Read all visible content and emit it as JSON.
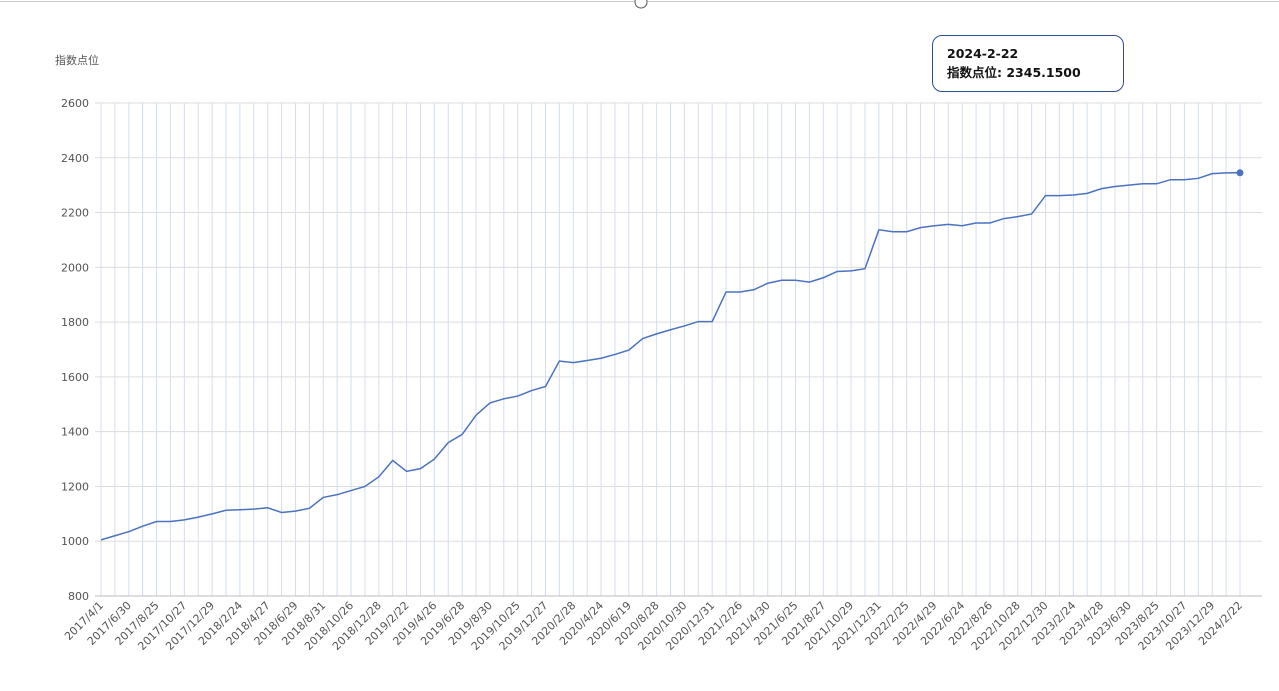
{
  "chart_data": {
    "type": "line",
    "y_label": "指数点位",
    "categories": [
      "2017/4/1",
      null,
      "2017/6/30",
      null,
      "2017/8/25",
      null,
      "2017/10/27",
      null,
      "2017/12/29",
      null,
      "2018/2/24",
      null,
      "2018/4/27",
      null,
      "2018/6/29",
      null,
      "2018/8/31",
      null,
      "2018/10/26",
      null,
      "2018/12/28",
      null,
      "2019/2/22",
      null,
      "2019/4/26",
      null,
      "2019/6/28",
      null,
      "2019/8/30",
      null,
      "2019/10/25",
      null,
      "2019/12/27",
      null,
      "2020/2/28",
      null,
      "2020/4/24",
      null,
      "2020/6/19",
      null,
      "2020/8/28",
      null,
      "2020/10/30",
      null,
      "2020/12/31",
      null,
      "2021/2/26",
      null,
      "2021/4/30",
      null,
      "2021/6/25",
      null,
      "2021/8/27",
      null,
      "2021/10/29",
      null,
      "2021/12/31",
      null,
      "2022/2/25",
      null,
      "2022/4/29",
      null,
      "2022/6/24",
      null,
      "2022/8/26",
      null,
      "2022/10/28",
      null,
      "2022/12/30",
      null,
      "2023/2/24",
      null,
      "2023/4/28",
      null,
      "2023/6/30",
      null,
      "2023/8/25",
      null,
      "2023/10/27",
      null,
      "2023/12/29",
      null,
      "2024/2/22"
    ],
    "series": [
      {
        "name": "指数点位",
        "color": "#4a72c0",
        "values": [
          1005,
          1020,
          1035,
          1055,
          1072,
          1072,
          1078,
          1088,
          1100,
          1113,
          1115,
          1117,
          1122,
          1105,
          1110,
          1120,
          1160,
          1170,
          1185,
          1200,
          1235,
          1295,
          1255,
          1265,
          1300,
          1360,
          1390,
          1460,
          1505,
          1520,
          1530,
          1550,
          1565,
          1658,
          1652,
          1660,
          1668,
          1682,
          1698,
          1740,
          1757,
          1772,
          1786,
          1802,
          1802,
          1910,
          1910,
          1918,
          1942,
          1953,
          1953,
          1946,
          1962,
          1985,
          1987,
          1995,
          2137,
          2130,
          2130,
          2145,
          2152,
          2157,
          2152,
          2162,
          2162,
          2178,
          2185,
          2195,
          2262,
          2262,
          2264,
          2270,
          2287,
          2295,
          2300,
          2305,
          2305,
          2320,
          2320,
          2325,
          2342,
          2345,
          2345.15
        ]
      }
    ],
    "ylim": [
      800,
      2600
    ],
    "yticks": [
      800,
      1000,
      1200,
      1400,
      1600,
      1800,
      2000,
      2200,
      2400,
      2600
    ],
    "grid": true,
    "tooltip": {
      "title": "2024-2-22",
      "label": "指数点位: 2345.1500"
    }
  }
}
